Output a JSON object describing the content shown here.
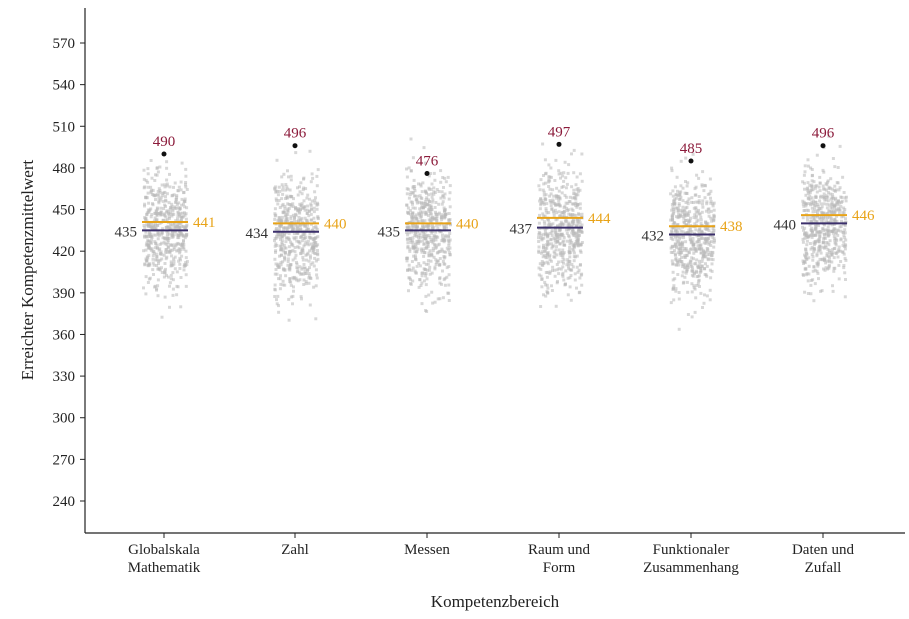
{
  "chart_data": {
    "type": "scatter",
    "xlabel": "Kompetenzbereich",
    "ylabel": "Erreichter Kompetenzmittelwert",
    "ylim": [
      220,
      580
    ],
    "yticks": [
      240,
      270,
      300,
      330,
      360,
      390,
      420,
      450,
      480,
      510,
      540,
      570
    ],
    "categories": [
      {
        "label": [
          "Globalskala",
          "Mathematik"
        ],
        "purple": 435,
        "orange": 441,
        "top": 490
      },
      {
        "label": [
          "Zahl"
        ],
        "purple": 434,
        "orange": 440,
        "top": 496
      },
      {
        "label": [
          "Messen"
        ],
        "purple": 435,
        "orange": 440,
        "top": 476
      },
      {
        "label": [
          "Raum und",
          "Form"
        ],
        "purple": 437,
        "orange": 444,
        "top": 497
      },
      {
        "label": [
          "Funktionaler",
          "Zusammenhang"
        ],
        "purple": 432,
        "orange": 438,
        "top": 485
      },
      {
        "label": [
          "Daten und",
          "Zufall"
        ],
        "purple": 440,
        "orange": 446,
        "top": 496
      }
    ],
    "colors": {
      "purple_line": "#3b2f6b",
      "orange_line": "#e8a317",
      "top_label": "#8b1a3a",
      "dots": "#b8b8b8",
      "axis": "#222222"
    },
    "grid": false
  }
}
